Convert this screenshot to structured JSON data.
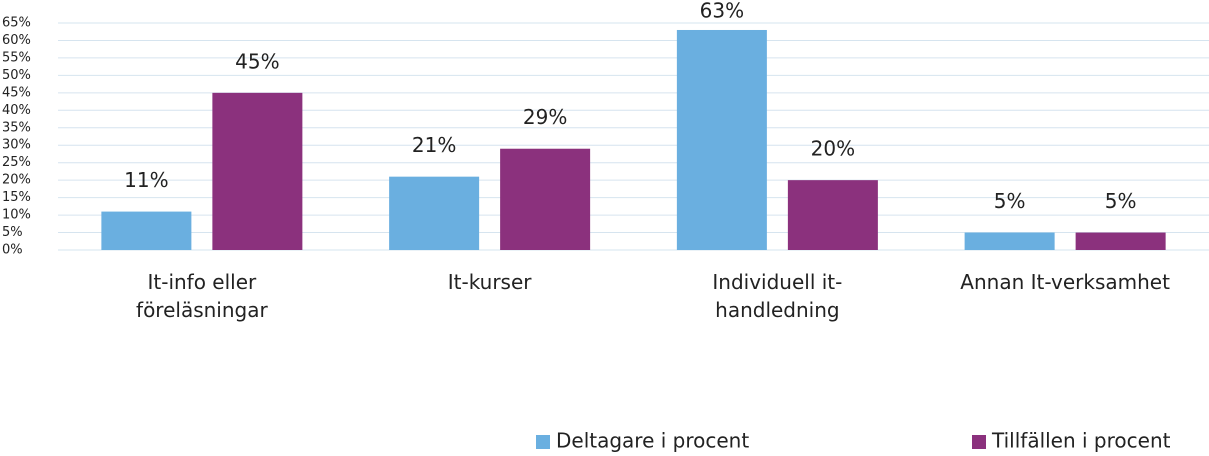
{
  "chart_data": {
    "type": "bar",
    "categories": [
      "It-info eller föreläsningar",
      "It-kurser",
      "Individuell it-handledning",
      "Annan It-verksamhet"
    ],
    "series": [
      {
        "name": "Deltagare i procent",
        "color": "#6aafe0",
        "values": [
          11,
          21,
          63,
          5
        ],
        "value_labels": [
          "11%",
          "21%",
          "63%",
          "5%"
        ]
      },
      {
        "name": "Tillfällen i procent",
        "color": "#8b317d",
        "values": [
          45,
          29,
          20,
          5
        ],
        "value_labels": [
          "45%",
          "29%",
          "20%",
          "5%"
        ]
      }
    ],
    "ylim": [
      0,
      65
    ],
    "yticks": [
      {
        "value": 0,
        "label": "0%"
      },
      {
        "value": 5,
        "label": "5%"
      },
      {
        "value": 10,
        "label": "10%"
      },
      {
        "value": 15,
        "label": "15%"
      },
      {
        "value": 20,
        "label": "20%"
      },
      {
        "value": 25,
        "label": "25%"
      },
      {
        "value": 30,
        "label": "30%"
      },
      {
        "value": 35,
        "label": "35%"
      },
      {
        "value": 40,
        "label": "40%"
      },
      {
        "value": 45,
        "label": "45%"
      },
      {
        "value": 50,
        "label": "50%"
      },
      {
        "value": 55,
        "label": "55%"
      },
      {
        "value": 60,
        "label": "60%"
      },
      {
        "value": 65,
        "label": "65%"
      }
    ],
    "grid": true
  }
}
